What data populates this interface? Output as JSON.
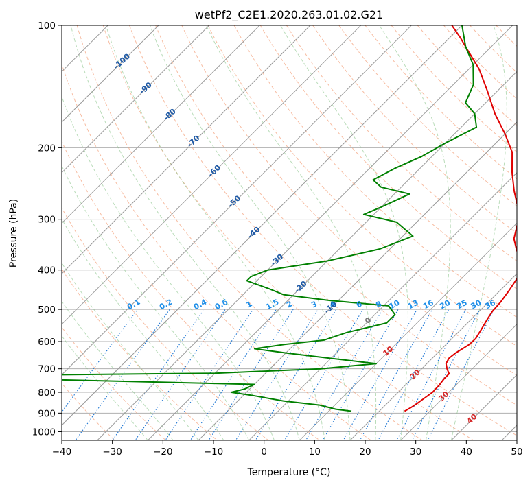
{
  "chart_data": {
    "type": "line",
    "title": "wetPf2_C2E1.2020.263.01.02.G21",
    "xlabel": "Temperature (°C)",
    "ylabel": "Pressure (hPa)",
    "xlim": [
      -40,
      50
    ],
    "ylim": [
      1050,
      100
    ],
    "y_scale": "log",
    "grid": true,
    "x_ticks": [
      -40,
      -30,
      -20,
      -10,
      0,
      10,
      20,
      30,
      40,
      50
    ],
    "y_ticks": [
      100,
      200,
      300,
      400,
      500,
      600,
      700,
      800,
      900,
      1000
    ],
    "skew_factor": 1.0,
    "isotherm_labels": [
      {
        "text": "-100",
        "t": -100,
        "p": 122
      },
      {
        "text": "-90",
        "t": -90,
        "p": 142
      },
      {
        "text": "-80",
        "t": -80,
        "p": 165
      },
      {
        "text": "-70",
        "t": -70,
        "p": 192
      },
      {
        "text": "-60",
        "t": -60,
        "p": 227
      },
      {
        "text": "-50",
        "t": -50,
        "p": 270
      },
      {
        "text": "-40",
        "t": -40,
        "p": 322
      },
      {
        "text": "-30",
        "t": -30,
        "p": 376
      },
      {
        "text": "-20",
        "t": -20,
        "p": 438
      },
      {
        "text": "-10",
        "t": -10,
        "p": 492
      },
      {
        "text": "0",
        "t": 0,
        "p": 530
      },
      {
        "text": "10",
        "t": 10,
        "p": 630
      },
      {
        "text": "20",
        "t": 20,
        "p": 720
      },
      {
        "text": "30",
        "t": 30,
        "p": 815
      },
      {
        "text": "40",
        "t": 40,
        "p": 925
      }
    ],
    "mixing_ratio_labels": [
      "0.1",
      "0.2",
      "0.4",
      "0.6",
      "1",
      "1.5",
      "2",
      "3",
      "4",
      "6",
      "8",
      "10",
      "13",
      "16",
      "20",
      "25",
      "30",
      "36"
    ],
    "series": [
      {
        "name": "",
        "color": "#e00000",
        "points": [
          {
            "t": 25.0,
            "p": 890
          },
          {
            "t": 25.6,
            "p": 870
          },
          {
            "t": 26.0,
            "p": 850
          },
          {
            "t": 26.3,
            "p": 830
          },
          {
            "t": 26.8,
            "p": 800
          },
          {
            "t": 26.7,
            "p": 770
          },
          {
            "t": 26.4,
            "p": 740
          },
          {
            "t": 26.4,
            "p": 720
          },
          {
            "t": 25.0,
            "p": 700
          },
          {
            "t": 23.8,
            "p": 680
          },
          {
            "t": 23.3,
            "p": 660
          },
          {
            "t": 23.6,
            "p": 640
          },
          {
            "t": 24.6,
            "p": 610
          },
          {
            "t": 24.7,
            "p": 590
          },
          {
            "t": 24.0,
            "p": 560
          },
          {
            "t": 23.2,
            "p": 530
          },
          {
            "t": 22.6,
            "p": 505
          },
          {
            "t": 22.4,
            "p": 480
          },
          {
            "t": 21.8,
            "p": 450
          },
          {
            "t": 21.0,
            "p": 420
          },
          {
            "t": 19.5,
            "p": 395
          },
          {
            "t": 17.5,
            "p": 375
          },
          {
            "t": 15.0,
            "p": 355
          },
          {
            "t": 12.5,
            "p": 335
          },
          {
            "t": 10.0,
            "p": 305
          },
          {
            "t": 7.0,
            "p": 280
          },
          {
            "t": 3.0,
            "p": 255
          },
          {
            "t": -1.0,
            "p": 230
          },
          {
            "t": -5.0,
            "p": 205
          },
          {
            "t": -10.0,
            "p": 185
          },
          {
            "t": -16.0,
            "p": 165
          },
          {
            "t": -22.0,
            "p": 145
          },
          {
            "t": -28.0,
            "p": 128
          },
          {
            "t": -34.0,
            "p": 115
          },
          {
            "t": -38.0,
            "p": 107
          },
          {
            "t": -42.0,
            "p": 100
          }
        ]
      },
      {
        "name": "",
        "color": "#008000",
        "points": [
          {
            "t": 14.5,
            "p": 890
          },
          {
            "t": 11.0,
            "p": 880
          },
          {
            "t": 7.0,
            "p": 860
          },
          {
            "t": -1.0,
            "p": 840
          },
          {
            "t": -8.0,
            "p": 815
          },
          {
            "t": -13.0,
            "p": 800
          },
          {
            "t": -11.0,
            "p": 785
          },
          {
            "t": -10.0,
            "p": 765
          },
          {
            "t": -50.0,
            "p": 745
          },
          {
            "t": -70.0,
            "p": 735
          },
          {
            "t": -55.0,
            "p": 725
          },
          {
            "t": -20.0,
            "p": 718
          },
          {
            "t": 0.0,
            "p": 700
          },
          {
            "t": 10.0,
            "p": 680
          },
          {
            "t": 0.0,
            "p": 660
          },
          {
            "t": -10.0,
            "p": 640
          },
          {
            "t": -17.0,
            "p": 625
          },
          {
            "t": -12.0,
            "p": 610
          },
          {
            "t": -5.0,
            "p": 595
          },
          {
            "t": -2.0,
            "p": 570
          },
          {
            "t": 4.0,
            "p": 540
          },
          {
            "t": 4.0,
            "p": 515
          },
          {
            "t": 1.0,
            "p": 490
          },
          {
            "t": -12.0,
            "p": 475
          },
          {
            "t": -22.0,
            "p": 460
          },
          {
            "t": -26.0,
            "p": 445
          },
          {
            "t": -32.0,
            "p": 425
          },
          {
            "t": -32.0,
            "p": 415
          },
          {
            "t": -30.0,
            "p": 400
          },
          {
            "t": -20.0,
            "p": 380
          },
          {
            "t": -12.0,
            "p": 355
          },
          {
            "t": -8.0,
            "p": 330
          },
          {
            "t": -14.0,
            "p": 305
          },
          {
            "t": -22.0,
            "p": 292
          },
          {
            "t": -20.0,
            "p": 280
          },
          {
            "t": -17.0,
            "p": 260
          },
          {
            "t": -24.0,
            "p": 250
          },
          {
            "t": -27.0,
            "p": 240
          },
          {
            "t": -25.0,
            "p": 225
          },
          {
            "t": -22.0,
            "p": 210
          },
          {
            "t": -20.0,
            "p": 195
          },
          {
            "t": -17.0,
            "p": 178
          },
          {
            "t": -20.0,
            "p": 165
          },
          {
            "t": -24.0,
            "p": 155
          },
          {
            "t": -26.0,
            "p": 140
          },
          {
            "t": -30.0,
            "p": 125
          },
          {
            "t": -35.0,
            "p": 113
          },
          {
            "t": -40.0,
            "p": 100
          }
        ]
      }
    ]
  }
}
